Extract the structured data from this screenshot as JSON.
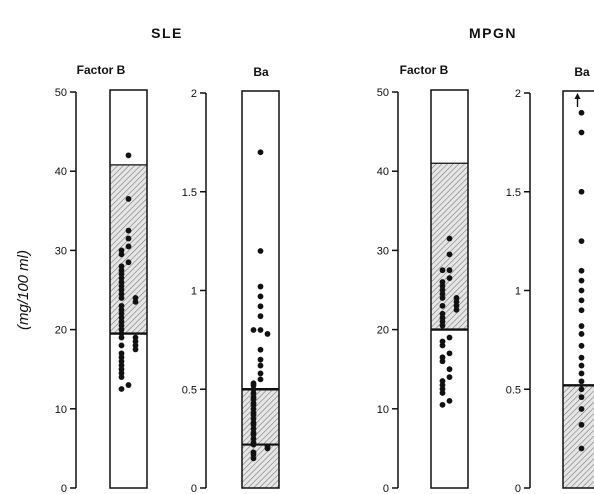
{
  "figure": {
    "group_titles": [
      "SLE",
      "MPGN"
    ],
    "ylabel": "(mg/100 ml)",
    "colors": {
      "ink": "#111111",
      "hatch_background": "#e6e6e6",
      "hatch_line": "#7a7a7a"
    }
  },
  "chart_data": [
    {
      "type": "scatter",
      "group": "SLE",
      "title": "Factor B",
      "ylabel": "(mg/100 ml)",
      "ylim": [
        0,
        50
      ],
      "ticks": [
        "0",
        "10",
        "20",
        "30",
        "40",
        "50"
      ],
      "tick_values": [
        0,
        10,
        20,
        30,
        40,
        50
      ],
      "normal_range": [
        19.5,
        40.8
      ],
      "mean_line": 19.5,
      "values": [
        42,
        36.5,
        32.5,
        31.5,
        30.5,
        30,
        29.5,
        28.5,
        28,
        27.5,
        27,
        26.5,
        26,
        25.5,
        25,
        24.5,
        24,
        24,
        23.5,
        23,
        22.5,
        22,
        21.5,
        21,
        20.5,
        20,
        19.5,
        19,
        19,
        18.5,
        18,
        18,
        17.5,
        17,
        16.5,
        16,
        15.5,
        15,
        14.5,
        14,
        13,
        12.5
      ]
    },
    {
      "type": "scatter",
      "group": "SLE",
      "title": "Ba",
      "ylabel": "",
      "ylim": [
        0,
        2
      ],
      "ticks": [
        "0",
        "0.5",
        "1",
        "1.5",
        "2"
      ],
      "tick_values": [
        0,
        0.5,
        1,
        1.5,
        2
      ],
      "normal_range": [
        0,
        0.5
      ],
      "mean_line": 0.5,
      "extra_lines": [
        0.22
      ],
      "values": [
        1.7,
        1.2,
        1.02,
        0.97,
        0.92,
        0.87,
        0.8,
        0.8,
        0.78,
        0.7,
        0.65,
        0.62,
        0.58,
        0.55,
        0.53,
        0.52,
        0.5,
        0.48,
        0.46,
        0.45,
        0.43,
        0.42,
        0.4,
        0.38,
        0.37,
        0.35,
        0.33,
        0.32,
        0.3,
        0.28,
        0.27,
        0.25,
        0.23,
        0.22,
        0.21,
        0.2,
        0.18,
        0.17,
        0.15
      ]
    },
    {
      "type": "scatter",
      "group": "MPGN",
      "title": "Factor B",
      "ylabel": "",
      "ylim": [
        0,
        50
      ],
      "ticks": [
        "0",
        "10",
        "20",
        "30",
        "40",
        "50"
      ],
      "tick_values": [
        0,
        10,
        20,
        30,
        40,
        50
      ],
      "normal_range": [
        20,
        41
      ],
      "mean_line": 20,
      "values": [
        31.5,
        29.5,
        27.5,
        27.5,
        26.5,
        26,
        25.5,
        25,
        24.5,
        24,
        24,
        23.5,
        23,
        23,
        22.5,
        22,
        21.5,
        21,
        20.5,
        19,
        18.5,
        18,
        17,
        16.5,
        16,
        15,
        14,
        13.5,
        13,
        12.5,
        12,
        11,
        10.5
      ]
    },
    {
      "type": "scatter",
      "group": "MPGN",
      "title": "Ba",
      "ylabel": "",
      "ylim": [
        0,
        2
      ],
      "ticks": [
        "0",
        "0.5",
        "1",
        "1.5",
        "2"
      ],
      "tick_values": [
        0,
        0.5,
        1,
        1.5,
        2
      ],
      "normal_range": [
        0,
        0.52
      ],
      "mean_line": 0.52,
      "off_scale_arrow": true,
      "values": [
        1.9,
        1.8,
        1.5,
        1.25,
        1.1,
        1.05,
        1.0,
        0.95,
        0.9,
        0.82,
        0.78,
        0.72,
        0.66,
        0.62,
        0.58,
        0.54,
        0.5,
        0.46,
        0.4,
        0.32,
        0.2
      ]
    }
  ]
}
